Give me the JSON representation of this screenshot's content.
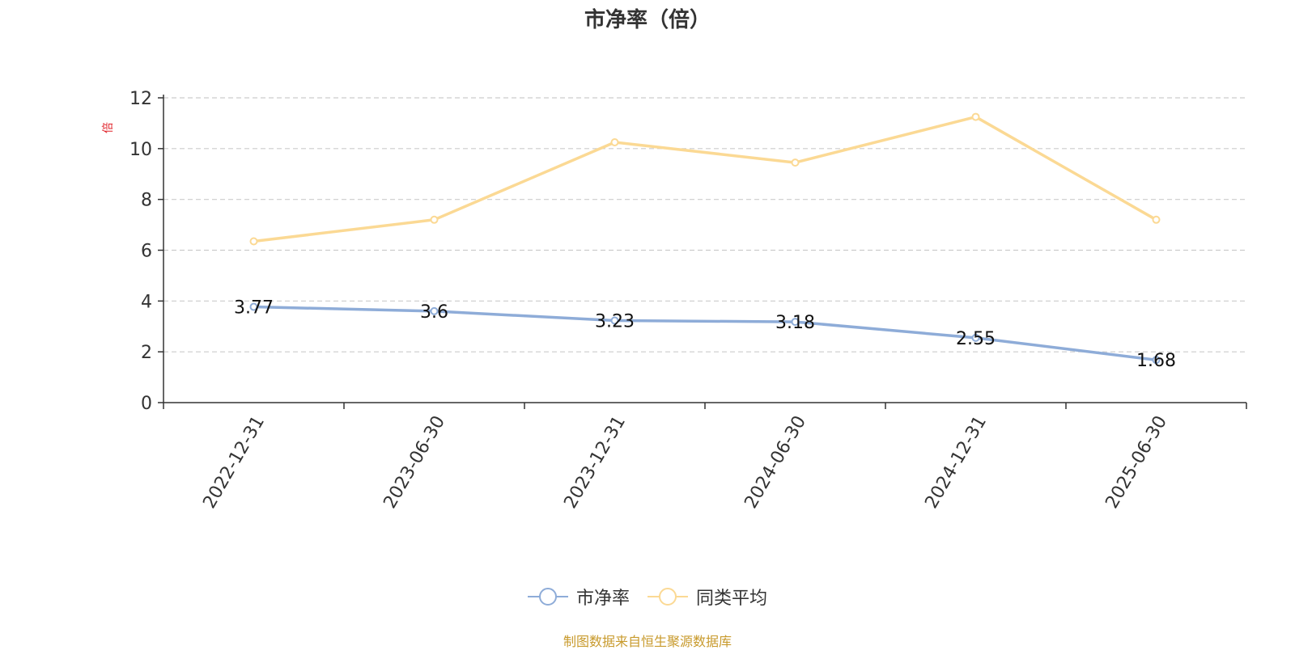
{
  "chart_data": {
    "type": "line",
    "title": "市净率（倍）",
    "ylabel": "倍",
    "ylim": [
      0,
      12
    ],
    "yticks": [
      0,
      2,
      4,
      6,
      8,
      10,
      12
    ],
    "grid": true,
    "legend_position": "bottom-center",
    "categories": [
      "2022-12-31",
      "2023-06-30",
      "2023-12-31",
      "2024-06-30",
      "2024-12-31",
      "2025-06-30"
    ],
    "series": [
      {
        "name": "市净率",
        "color": "#8eacd8",
        "values": [
          3.77,
          3.6,
          3.23,
          3.18,
          2.55,
          1.68
        ],
        "data_labels": [
          "3.77",
          "3.6",
          "3.23",
          "3.18",
          "2.55",
          "1.68"
        ]
      },
      {
        "name": "同类平均",
        "color": "#fbd994",
        "values": [
          6.35,
          7.2,
          10.25,
          9.45,
          11.25,
          7.2
        ]
      }
    ]
  },
  "source_note": "制图数据来自恒生聚源数据库"
}
